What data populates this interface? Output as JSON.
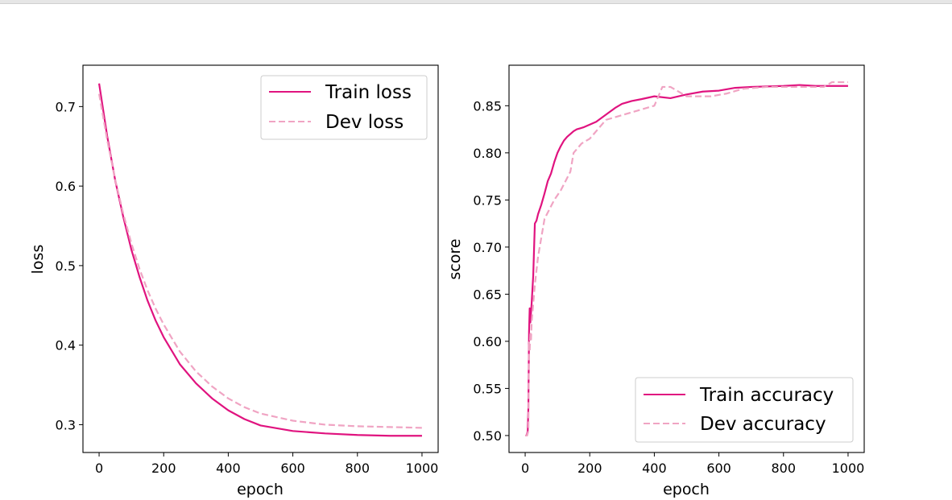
{
  "chart_data": [
    {
      "type": "line",
      "title": "",
      "xlabel": "epoch",
      "ylabel": "loss",
      "xlim": [
        -50,
        1050
      ],
      "ylim": [
        0.265,
        0.752
      ],
      "xticks": [
        0,
        200,
        400,
        600,
        800,
        1000
      ],
      "yticks": [
        0.3,
        0.4,
        0.5,
        0.6,
        0.7
      ],
      "ytick_labels": [
        "0.3",
        "0.4",
        "0.5",
        "0.6",
        "0.7"
      ],
      "legend_position": "upper right",
      "series": [
        {
          "name": "Train loss",
          "color": "#e0137f",
          "style": "solid",
          "x": [
            0,
            25,
            50,
            75,
            100,
            125,
            150,
            175,
            200,
            250,
            300,
            350,
            400,
            450,
            500,
            600,
            700,
            800,
            900,
            1000
          ],
          "y": [
            0.729,
            0.663,
            0.607,
            0.561,
            0.52,
            0.486,
            0.456,
            0.431,
            0.41,
            0.376,
            0.352,
            0.333,
            0.318,
            0.307,
            0.299,
            0.292,
            0.289,
            0.287,
            0.286,
            0.286
          ]
        },
        {
          "name": "Dev loss",
          "color": "#f0a4c3",
          "style": "dashed",
          "x": [
            0,
            25,
            50,
            75,
            100,
            125,
            150,
            175,
            200,
            250,
            300,
            350,
            400,
            450,
            500,
            600,
            700,
            800,
            900,
            1000
          ],
          "y": [
            0.716,
            0.658,
            0.608,
            0.565,
            0.528,
            0.496,
            0.469,
            0.446,
            0.426,
            0.392,
            0.367,
            0.348,
            0.333,
            0.322,
            0.314,
            0.305,
            0.3,
            0.298,
            0.297,
            0.296
          ]
        }
      ]
    },
    {
      "type": "line",
      "title": "",
      "xlabel": "epoch",
      "ylabel": "score",
      "xlim": [
        -50,
        1050
      ],
      "ylim": [
        0.482,
        0.893
      ],
      "xticks": [
        0,
        200,
        400,
        600,
        800,
        1000
      ],
      "yticks": [
        0.5,
        0.55,
        0.6,
        0.65,
        0.7,
        0.75,
        0.8,
        0.85
      ],
      "ytick_labels": [
        "0.50",
        "0.55",
        "0.60",
        "0.65",
        "0.70",
        "0.75",
        "0.80",
        "0.85"
      ],
      "legend_position": "lower right",
      "series": [
        {
          "name": "Train accuracy",
          "color": "#e0137f",
          "style": "solid",
          "x": [
            0,
            5,
            8,
            10,
            12,
            14,
            16,
            18,
            20,
            25,
            30,
            35,
            40,
            50,
            60,
            70,
            80,
            90,
            100,
            110,
            120,
            130,
            140,
            150,
            160,
            170,
            180,
            200,
            220,
            240,
            260,
            280,
            300,
            330,
            360,
            400,
            450,
            500,
            550,
            600,
            650,
            700,
            800,
            850,
            900,
            950,
            1000
          ],
          "y": [
            0.5,
            0.5,
            0.505,
            0.53,
            0.61,
            0.635,
            0.62,
            0.63,
            0.64,
            0.67,
            0.725,
            0.728,
            0.735,
            0.745,
            0.757,
            0.77,
            0.778,
            0.79,
            0.8,
            0.807,
            0.813,
            0.817,
            0.82,
            0.823,
            0.825,
            0.826,
            0.827,
            0.83,
            0.833,
            0.838,
            0.843,
            0.848,
            0.852,
            0.855,
            0.857,
            0.86,
            0.858,
            0.862,
            0.865,
            0.866,
            0.869,
            0.87,
            0.871,
            0.872,
            0.871,
            0.871,
            0.871
          ]
        },
        {
          "name": "Dev accuracy",
          "color": "#f0a4c3",
          "style": "dashed",
          "x": [
            0,
            6,
            10,
            12,
            14,
            16,
            18,
            20,
            25,
            30,
            40,
            50,
            60,
            75,
            90,
            110,
            125,
            140,
            150,
            175,
            200,
            225,
            250,
            300,
            350,
            400,
            425,
            450,
            500,
            525,
            575,
            625,
            675,
            750,
            850,
            925,
            950,
            1000
          ],
          "y": [
            0.5,
            0.5,
            0.505,
            0.6,
            0.59,
            0.61,
            0.6,
            0.62,
            0.64,
            0.66,
            0.69,
            0.71,
            0.73,
            0.74,
            0.75,
            0.76,
            0.77,
            0.78,
            0.8,
            0.81,
            0.815,
            0.825,
            0.835,
            0.84,
            0.845,
            0.85,
            0.87,
            0.87,
            0.86,
            0.86,
            0.86,
            0.863,
            0.868,
            0.87,
            0.87,
            0.87,
            0.875,
            0.875
          ]
        }
      ]
    }
  ]
}
